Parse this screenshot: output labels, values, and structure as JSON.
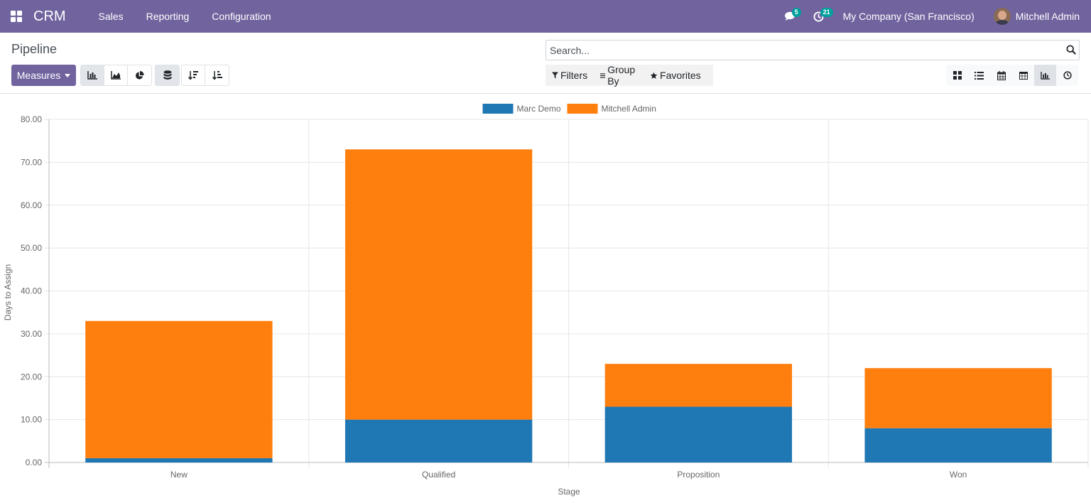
{
  "navbar": {
    "brand": "CRM",
    "menu": [
      "Sales",
      "Reporting",
      "Configuration"
    ],
    "messages_count": "5",
    "activities_count": "21",
    "company": "My Company (San Francisco)",
    "user": "Mitchell Admin"
  },
  "control_panel": {
    "breadcrumb": "Pipeline",
    "search_placeholder": "Search...",
    "measures_label": "Measures",
    "filters_label": "Filters",
    "group_by_label": "Group By",
    "favorites_label": "Favorites"
  },
  "colors": {
    "navbar": "#71639e",
    "series_marc": "#1f77b4",
    "series_mitchell": "#ff7f0e"
  },
  "chart_data": {
    "type": "bar",
    "stacked": true,
    "categories": [
      "New",
      "Qualified",
      "Proposition",
      "Won"
    ],
    "series": [
      {
        "name": "Marc Demo",
        "values": [
          1,
          10,
          13,
          8
        ],
        "color": "#1f77b4"
      },
      {
        "name": "Mitchell Admin",
        "values": [
          32,
          63,
          10,
          14
        ],
        "color": "#ff7f0e"
      }
    ],
    "ylim": [
      0,
      80
    ],
    "yticks": [
      "0.00",
      "10.00",
      "20.00",
      "30.00",
      "40.00",
      "50.00",
      "60.00",
      "70.00",
      "80.00"
    ],
    "xlabel": "Stage",
    "ylabel": "Days to Assign",
    "legend": "top-center",
    "grid": true
  }
}
